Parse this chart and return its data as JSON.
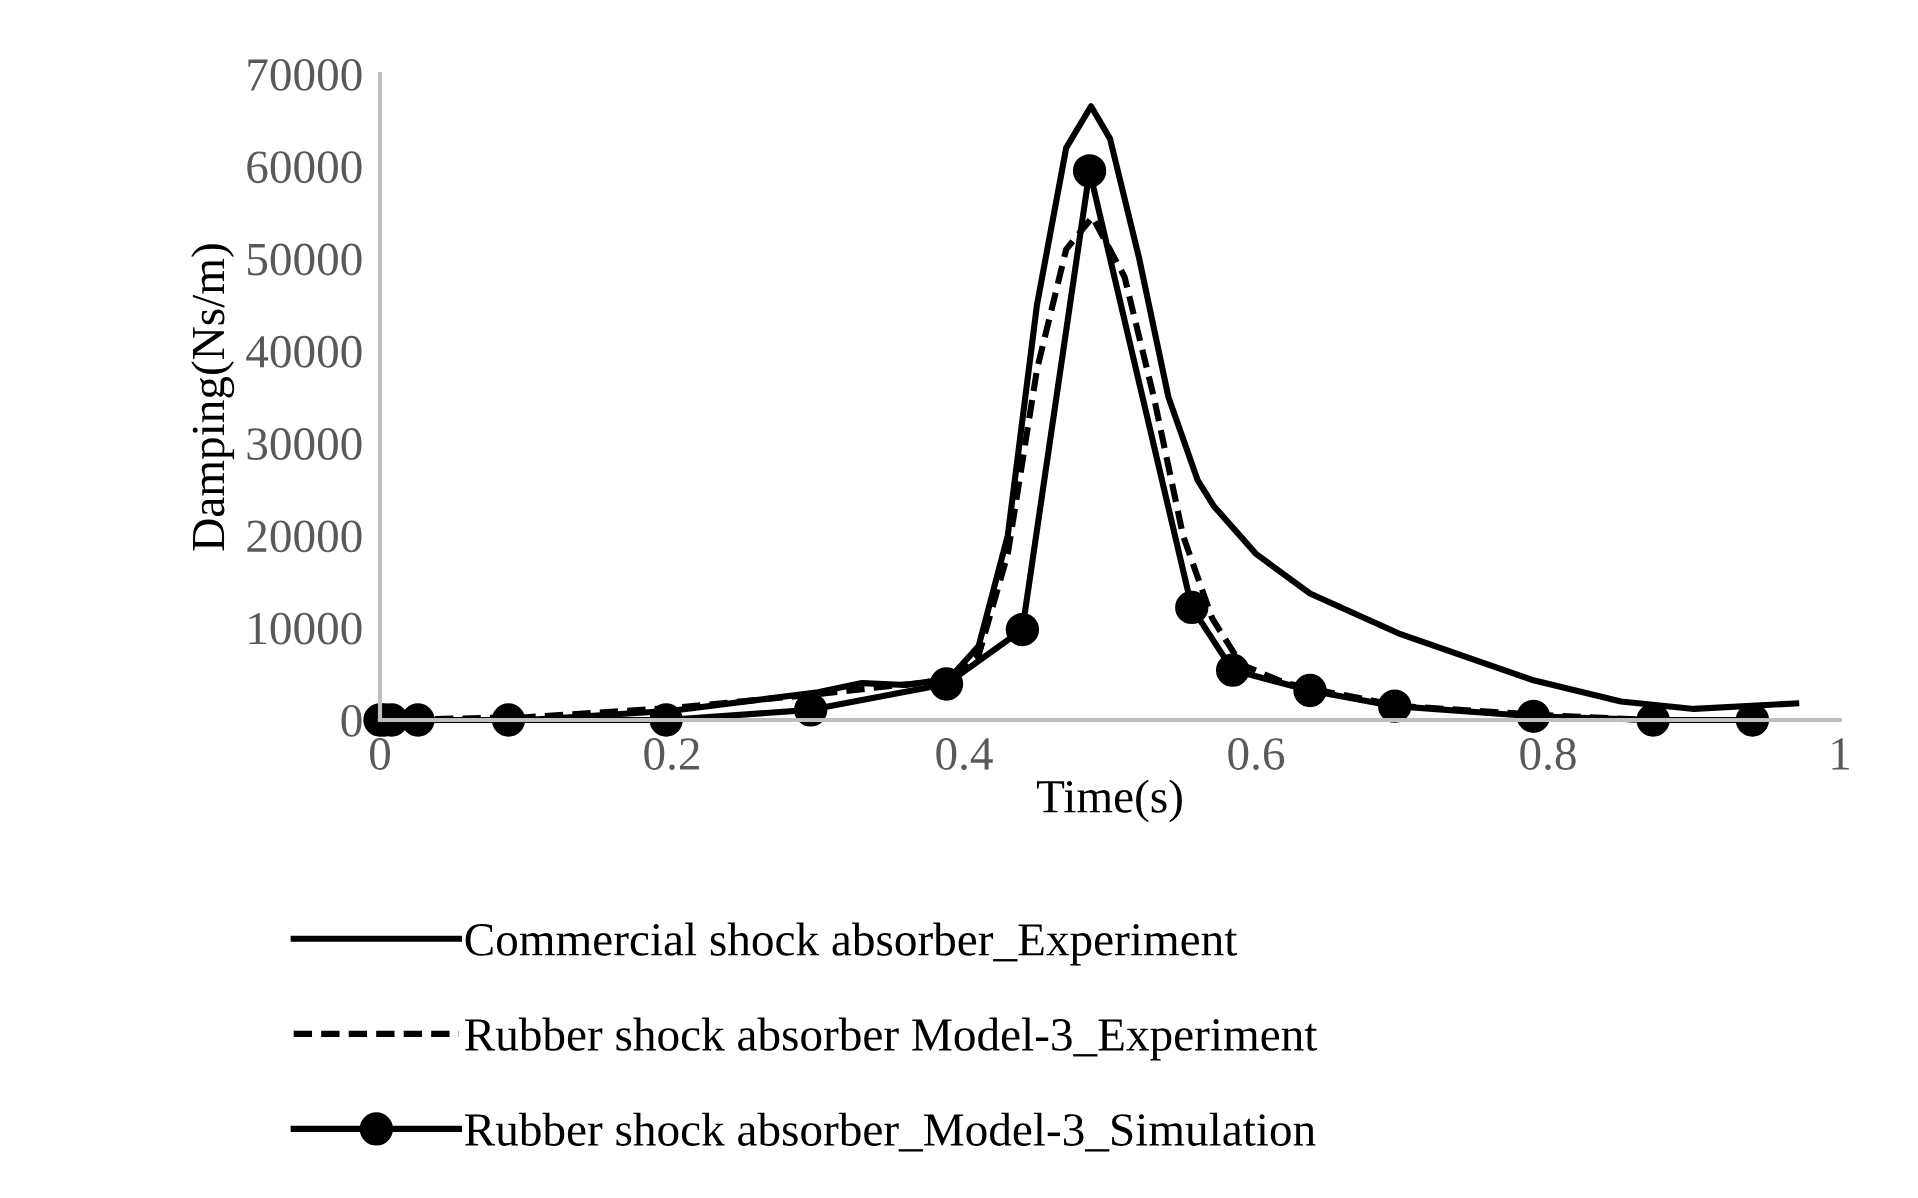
{
  "chart_data": {
    "type": "line",
    "xlabel": "Time(s)",
    "ylabel": "Damping(Ns/m)",
    "xlim": [
      0,
      1
    ],
    "xticks": [
      0,
      0.2,
      0.4,
      0.6,
      0.8,
      1
    ],
    "ylim": [
      0,
      70000
    ],
    "yticks": [
      0,
      10000,
      20000,
      30000,
      40000,
      50000,
      60000,
      70000
    ],
    "grid": false,
    "legend": "bottom",
    "series": [
      {
        "name": "Commercial shock absorber_Experiment",
        "color": "#000000",
        "line_style": "solid",
        "marker": "none",
        "x": [
          0,
          0.1,
          0.2,
          0.3,
          0.33,
          0.36,
          0.39,
          0.41,
          0.43,
          0.45,
          0.47,
          0.487,
          0.5,
          0.52,
          0.54,
          0.56,
          0.571,
          0.6,
          0.637,
          0.699,
          0.79,
          0.85,
          0.9,
          0.97
        ],
        "values": [
          0,
          0,
          1000,
          3000,
          4000,
          3800,
          4500,
          8000,
          20000,
          45000,
          62000,
          66500,
          63000,
          50000,
          35000,
          26000,
          23200,
          18000,
          13700,
          9300,
          4300,
          2000,
          1200,
          1800
        ]
      },
      {
        "name": "Rubber shock absorber Model-3_Experiment",
        "color": "#000000",
        "line_style": "dashed",
        "marker": "none",
        "x": [
          0,
          0.1,
          0.2,
          0.3,
          0.35,
          0.39,
          0.41,
          0.43,
          0.45,
          0.47,
          0.488,
          0.51,
          0.53,
          0.55,
          0.57,
          0.59,
          0.62,
          0.65,
          0.7,
          0.8,
          0.87,
          0.94
        ],
        "values": [
          0,
          300,
          1300,
          2800,
          3700,
          4300,
          7000,
          18000,
          38000,
          51000,
          54500,
          48000,
          35000,
          20000,
          11000,
          6000,
          4000,
          3000,
          1500,
          500,
          0,
          0
        ]
      },
      {
        "name": "Rubber shock absorber_Model-3_Simulation",
        "color": "#000000",
        "line_style": "solid",
        "marker": "circle",
        "x": [
          0,
          0.003,
          0.008,
          0.026,
          0.088,
          0.196,
          0.295,
          0.388,
          0.44,
          0.486,
          0.556,
          0.584,
          0.637,
          0.695,
          0.79,
          0.872,
          0.94
        ],
        "values": [
          0,
          0,
          0,
          0,
          0,
          0,
          1100,
          3900,
          9800,
          59500,
          12200,
          5400,
          3200,
          1500,
          400,
          0,
          0
        ]
      }
    ]
  }
}
